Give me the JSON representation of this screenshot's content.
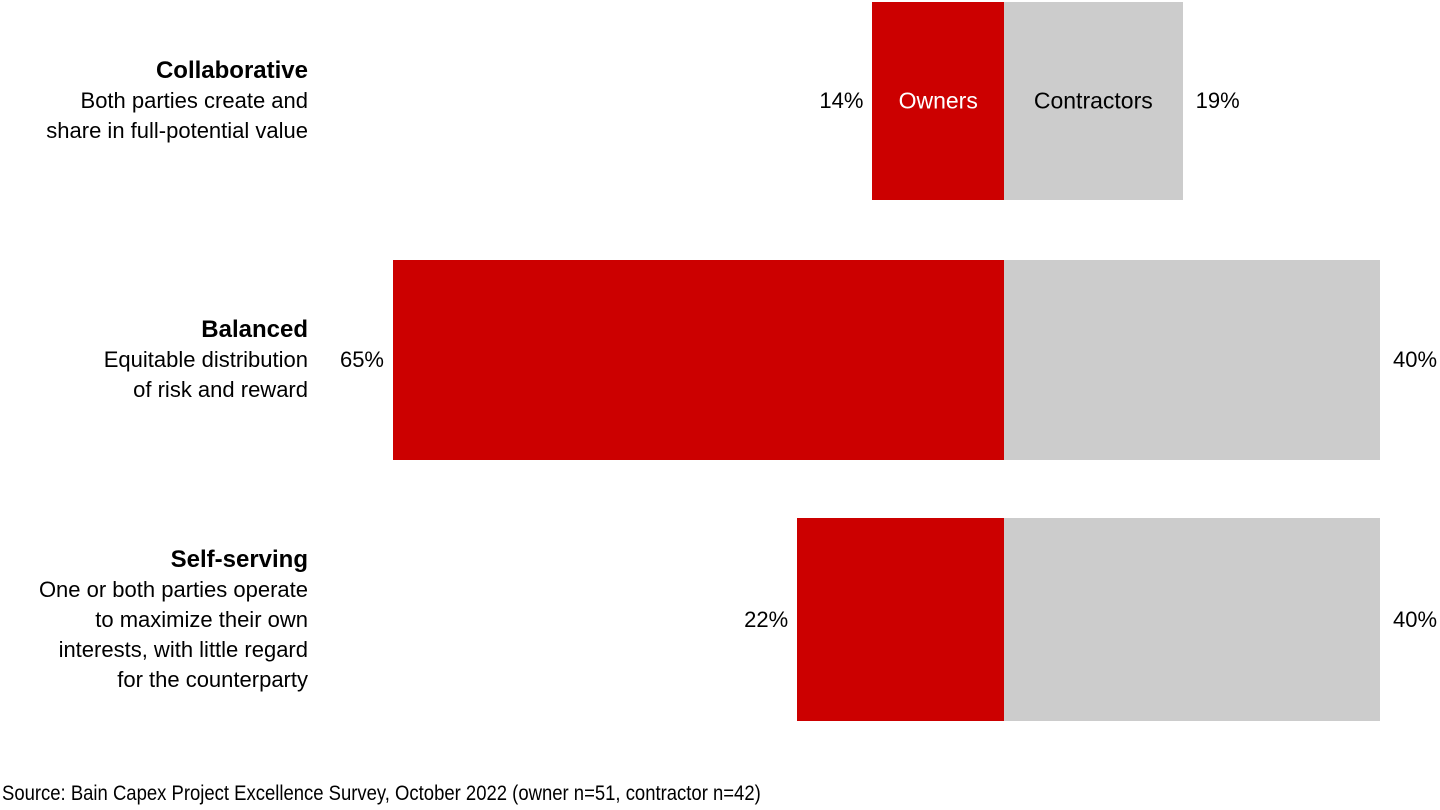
{
  "chart_data": {
    "type": "bar",
    "variant": "diverging-horizontal",
    "title": "",
    "value_suffix": "%",
    "axis": {
      "center_split": true,
      "left_series": "Owners",
      "right_series": "Contractors"
    },
    "legend": {
      "position": "inside-first-row-bars"
    },
    "series": [
      {
        "name": "Owners",
        "color": "#cc0000",
        "text_color": "#ffffff",
        "values": [
          14,
          65,
          22
        ]
      },
      {
        "name": "Contractors",
        "color": "#cccccc",
        "text_color": "#000000",
        "values": [
          19,
          40,
          40
        ]
      }
    ],
    "categories": [
      "Collaborative",
      "Balanced",
      "Self-serving"
    ],
    "rows": [
      {
        "title": "Collaborative",
        "description": "Both parties create and\nshare in full-potential value",
        "owner_value": 14,
        "owner_label": "14%",
        "contractor_value": 19,
        "contractor_label": "19%"
      },
      {
        "title": "Balanced",
        "description": "Equitable distribution\nof risk and reward",
        "owner_value": 65,
        "owner_label": "65%",
        "contractor_value": 40,
        "contractor_label": "40%"
      },
      {
        "title": "Self-serving",
        "description": "One or both parties operate\nto maximize their own\ninterests, with little regard\nfor the counterparty",
        "owner_value": 22,
        "owner_label": "22%",
        "contractor_value": 40,
        "contractor_label": "40%"
      }
    ]
  },
  "footer": {
    "source": "Source: Bain Capex Project Excellence Survey, October 2022 (owner n=51, contractor n=42)"
  }
}
